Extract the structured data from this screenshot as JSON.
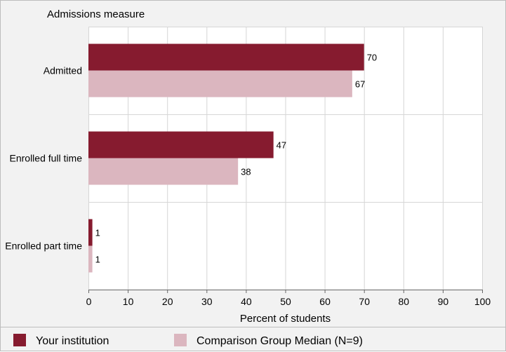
{
  "chart_data": {
    "type": "bar",
    "orientation": "horizontal",
    "title": "Admissions measure",
    "xlabel": "Percent of students",
    "ylabel": "",
    "xlim": [
      0,
      100
    ],
    "xticks": [
      "0",
      "10",
      "20",
      "30",
      "40",
      "50",
      "60",
      "70",
      "80",
      "90",
      "100"
    ],
    "grid": true,
    "legend_position": "bottom",
    "categories": [
      "Admitted",
      "Enrolled full time",
      "Enrolled part time"
    ],
    "series": [
      {
        "name": "Your institution",
        "values": [
          70,
          47,
          1
        ],
        "color": "#861b2f"
      },
      {
        "name": "Comparison Group Median (N=9)",
        "values": [
          67,
          38,
          1
        ],
        "color": "#dbb6bf"
      }
    ]
  }
}
